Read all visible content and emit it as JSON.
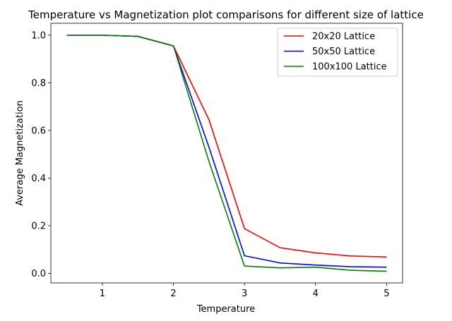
{
  "chart_data": {
    "type": "line",
    "title": "Temperature vs Magnetization plot comparisons for different size of lattice",
    "xlabel": "Temperature",
    "ylabel": "Average Magnetization",
    "xlim": [
      0.275,
      5.225
    ],
    "ylim": [
      -0.04,
      1.05
    ],
    "xticks": [
      1,
      2,
      3,
      4,
      5
    ],
    "xtick_labels": [
      "1",
      "2",
      "3",
      "4",
      "5"
    ],
    "yticks": [
      0.0,
      0.2,
      0.4,
      0.6,
      0.8,
      1.0
    ],
    "ytick_labels": [
      "0.0",
      "0.2",
      "0.4",
      "0.6",
      "0.8",
      "1.0"
    ],
    "grid": false,
    "legend_position": "top-right",
    "x": [
      0.5,
      1.0,
      1.5,
      2.0,
      2.5,
      3.0,
      3.5,
      4.0,
      4.5,
      5.0
    ],
    "series": [
      {
        "name": "20x20 Lattice",
        "color": "#ff0000",
        "values": [
          1.0,
          1.0,
          0.995,
          0.955,
          0.645,
          0.188,
          0.108,
          0.086,
          0.073,
          0.069
        ]
      },
      {
        "name": "50x50 Lattice",
        "color": "#0000ff",
        "values": [
          1.0,
          1.0,
          0.995,
          0.955,
          0.53,
          0.074,
          0.044,
          0.035,
          0.028,
          0.026
        ]
      },
      {
        "name": "100x100 Lattice",
        "color": "#008000",
        "values": [
          1.0,
          1.0,
          0.995,
          0.955,
          0.47,
          0.031,
          0.023,
          0.026,
          0.013,
          0.009
        ]
      }
    ]
  }
}
